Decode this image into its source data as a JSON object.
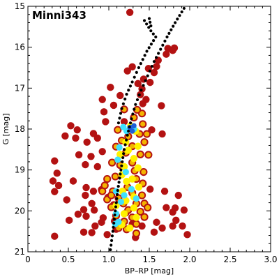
{
  "chart_data": {
    "type": "scatter",
    "title": "Minni343",
    "xlabel": "BP–RP [mag]",
    "ylabel": "G [mag]",
    "xlim": [
      0,
      3.0
    ],
    "ylim": [
      21,
      15
    ],
    "y_inverted": true,
    "grid": false,
    "x_ticks": [
      0,
      0.5,
      1.0,
      1.5,
      2.0,
      2.5,
      3.0
    ],
    "x_tick_labels": [
      "0",
      "0.5",
      "1.0",
      "1.5",
      "2.0",
      "2.5",
      "3.0"
    ],
    "y_ticks": [
      15,
      16,
      17,
      18,
      19,
      20,
      21
    ],
    "y_tick_labels": [
      "15",
      "16",
      "17",
      "18",
      "19",
      "20",
      "21"
    ],
    "colors": {
      "field_stars": "#b31212",
      "density_mid": "#f4b400",
      "density_high": "#fff200",
      "density_core": "#3fe0ff",
      "density_peak": "#1f5fd6",
      "isochrone": "#000000"
    },
    "series": [
      {
        "role": "field_stars",
        "points": [
          [
            1.26,
            15.15
          ],
          [
            1.79,
            16.08
          ],
          [
            1.23,
            16.58
          ],
          [
            1.29,
            16.48
          ],
          [
            1.43,
            16.78
          ],
          [
            1.36,
            16.89
          ],
          [
            1.02,
            16.98
          ],
          [
            1.14,
            17.18
          ],
          [
            0.94,
            17.58
          ],
          [
            1.65,
            17.43
          ],
          [
            0.92,
            17.28
          ],
          [
            1.06,
            17.42
          ],
          [
            1.46,
            17.28
          ],
          [
            0.96,
            17.82
          ],
          [
            1.19,
            17.82
          ],
          [
            0.53,
            17.92
          ],
          [
            0.61,
            18.02
          ],
          [
            0.46,
            18.17
          ],
          [
            0.59,
            18.22
          ],
          [
            0.81,
            18.11
          ],
          [
            0.73,
            18.32
          ],
          [
            0.86,
            18.22
          ],
          [
            1.66,
            18.12
          ],
          [
            1.53,
            18.02
          ],
          [
            0.92,
            18.55
          ],
          [
            0.63,
            18.63
          ],
          [
            0.78,
            18.67
          ],
          [
            0.71,
            18.87
          ],
          [
            0.86,
            18.92
          ],
          [
            0.33,
            18.78
          ],
          [
            0.36,
            19.08
          ],
          [
            0.31,
            19.27
          ],
          [
            0.38,
            19.38
          ],
          [
            0.56,
            19.27
          ],
          [
            0.72,
            19.43
          ],
          [
            0.81,
            19.52
          ],
          [
            0.33,
            19.53
          ],
          [
            0.71,
            19.62
          ],
          [
            0.91,
            19.48
          ],
          [
            0.99,
            19.67
          ],
          [
            0.48,
            19.73
          ],
          [
            0.79,
            19.82
          ],
          [
            0.82,
            19.98
          ],
          [
            0.72,
            20.13
          ],
          [
            0.93,
            20.17
          ],
          [
            0.51,
            20.23
          ],
          [
            0.62,
            20.08
          ],
          [
            0.83,
            20.37
          ],
          [
            0.91,
            20.28
          ],
          [
            0.69,
            20.52
          ],
          [
            0.79,
            20.53
          ],
          [
            0.98,
            20.58
          ],
          [
            0.33,
            20.62
          ],
          [
            1.29,
            20.32
          ],
          [
            1.41,
            20.37
          ],
          [
            1.59,
            20.28
          ],
          [
            1.56,
            20.52
          ],
          [
            1.66,
            20.42
          ],
          [
            1.79,
            20.03
          ],
          [
            1.93,
            19.98
          ],
          [
            1.82,
            19.93
          ],
          [
            1.71,
            19.92
          ],
          [
            1.83,
            20.23
          ],
          [
            1.91,
            20.37
          ],
          [
            1.97,
            20.58
          ],
          [
            1.79,
            20.37
          ],
          [
            1.86,
            19.62
          ],
          [
            1.69,
            19.52
          ],
          [
            1.51,
            19.47
          ],
          [
            0.69,
            19.97
          ],
          [
            1.81,
            16.02
          ],
          [
            1.73,
            16.03
          ],
          [
            1.71,
            16.17
          ],
          [
            1.61,
            16.32
          ],
          [
            1.59,
            16.47
          ],
          [
            1.49,
            16.52
          ],
          [
            1.56,
            16.62
          ],
          [
            1.51,
            16.86
          ],
          [
            1.41,
            17.02
          ],
          [
            1.39,
            17.16
          ],
          [
            1.42,
            17.38
          ],
          [
            1.06,
            19.85
          ],
          [
            1.21,
            20.05
          ],
          [
            1.09,
            20.45
          ],
          [
            1.33,
            20.65
          ],
          [
            1.07,
            20.25
          ]
        ]
      },
      {
        "role": "density_mid",
        "points": [
          [
            1.19,
            17.52
          ],
          [
            1.31,
            17.72
          ],
          [
            1.41,
            17.62
          ],
          [
            1.42,
            17.88
          ],
          [
            1.11,
            18.02
          ],
          [
            1.38,
            18.12
          ],
          [
            1.44,
            18.32
          ],
          [
            1.29,
            18.42
          ],
          [
            1.09,
            18.43
          ],
          [
            1.21,
            18.58
          ],
          [
            1.39,
            18.62
          ],
          [
            1.49,
            18.63
          ],
          [
            1.04,
            18.82
          ],
          [
            1.14,
            18.88
          ],
          [
            1.32,
            19.02
          ],
          [
            1.43,
            19.05
          ],
          [
            1.08,
            19.16
          ],
          [
            0.98,
            19.22
          ],
          [
            1.42,
            19.33
          ],
          [
            1.23,
            19.42
          ],
          [
            1.05,
            19.52
          ],
          [
            1.29,
            19.56
          ],
          [
            1.41,
            19.62
          ],
          [
            1.12,
            19.69
          ],
          [
            0.98,
            19.72
          ],
          [
            1.34,
            19.82
          ],
          [
            1.44,
            19.82
          ],
          [
            1.03,
            19.91
          ],
          [
            1.24,
            19.98
          ],
          [
            1.39,
            20.02
          ],
          [
            1.09,
            20.12
          ],
          [
            1.29,
            20.16
          ],
          [
            1.19,
            20.26
          ],
          [
            1.34,
            20.32
          ],
          [
            1.22,
            20.45
          ],
          [
            1.34,
            20.55
          ],
          [
            1.12,
            20.42
          ],
          [
            1.24,
            18.18
          ],
          [
            1.16,
            18.28
          ],
          [
            1.47,
            18.12
          ],
          [
            1.35,
            17.53
          ],
          [
            1.29,
            18.82
          ],
          [
            1.34,
            19.22
          ],
          [
            1.18,
            19.82
          ],
          [
            1.44,
            20.15
          ],
          [
            1.48,
            19.92
          ],
          [
            1.03,
            19.62
          ],
          [
            0.95,
            19.38
          ],
          [
            0.92,
            19.52
          ]
        ]
      },
      {
        "role": "density_high",
        "points": [
          [
            1.27,
            17.92
          ],
          [
            1.33,
            18.05
          ],
          [
            1.21,
            18.32
          ],
          [
            1.36,
            18.42
          ],
          [
            1.14,
            18.62
          ],
          [
            1.31,
            18.72
          ],
          [
            1.19,
            18.92
          ],
          [
            1.36,
            18.95
          ],
          [
            1.16,
            19.12
          ],
          [
            1.29,
            19.22
          ],
          [
            1.37,
            19.42
          ],
          [
            1.17,
            19.52
          ],
          [
            1.31,
            19.66
          ],
          [
            1.21,
            19.75
          ],
          [
            1.09,
            19.87
          ],
          [
            1.31,
            19.93
          ],
          [
            1.19,
            20.07
          ],
          [
            1.34,
            20.16
          ],
          [
            1.16,
            20.34
          ],
          [
            1.26,
            20.42
          ],
          [
            1.24,
            18.52
          ],
          [
            1.22,
            19.28
          ]
        ]
      },
      {
        "role": "density_core",
        "points": [
          [
            1.18,
            17.95
          ],
          [
            1.31,
            18.0
          ],
          [
            1.22,
            18.05
          ],
          [
            1.13,
            18.45
          ],
          [
            1.11,
            18.75
          ],
          [
            1.21,
            19.05
          ],
          [
            1.28,
            19.47
          ],
          [
            1.09,
            19.52
          ],
          [
            1.19,
            19.62
          ],
          [
            1.34,
            19.7
          ],
          [
            1.15,
            19.78
          ],
          [
            1.09,
            20.07
          ],
          [
            1.12,
            20.27
          ],
          [
            1.08,
            20.32
          ]
        ]
      },
      {
        "role": "density_peak",
        "points": [
          [
            1.26,
            17.96
          ],
          [
            1.31,
            17.92
          ],
          [
            1.29,
            18.05
          ]
        ]
      },
      {
        "role": "isochrone",
        "points": [
          [
            1.02,
            20.95
          ],
          [
            1.05,
            20.5
          ],
          [
            1.08,
            20.0
          ],
          [
            1.11,
            19.5
          ],
          [
            1.15,
            19.0
          ],
          [
            1.19,
            18.5
          ],
          [
            1.23,
            18.15
          ],
          [
            1.28,
            17.75
          ],
          [
            1.33,
            17.4
          ],
          [
            1.4,
            17.05
          ],
          [
            1.48,
            16.7
          ],
          [
            1.56,
            16.35
          ],
          [
            1.64,
            16.05
          ],
          [
            1.72,
            15.75
          ],
          [
            1.82,
            15.4
          ],
          [
            1.93,
            15.05
          ]
        ]
      },
      {
        "role": "isochrone_upper",
        "points": [
          [
            1.12,
            17.85
          ],
          [
            1.16,
            17.5
          ],
          [
            1.22,
            17.15
          ],
          [
            1.29,
            16.85
          ],
          [
            1.37,
            16.5
          ],
          [
            1.47,
            16.1
          ],
          [
            1.58,
            15.75
          ],
          [
            1.52,
            15.6
          ],
          [
            1.44,
            15.35
          ],
          [
            1.5,
            15.3
          ],
          [
            1.52,
            15.48
          ]
        ]
      }
    ]
  }
}
